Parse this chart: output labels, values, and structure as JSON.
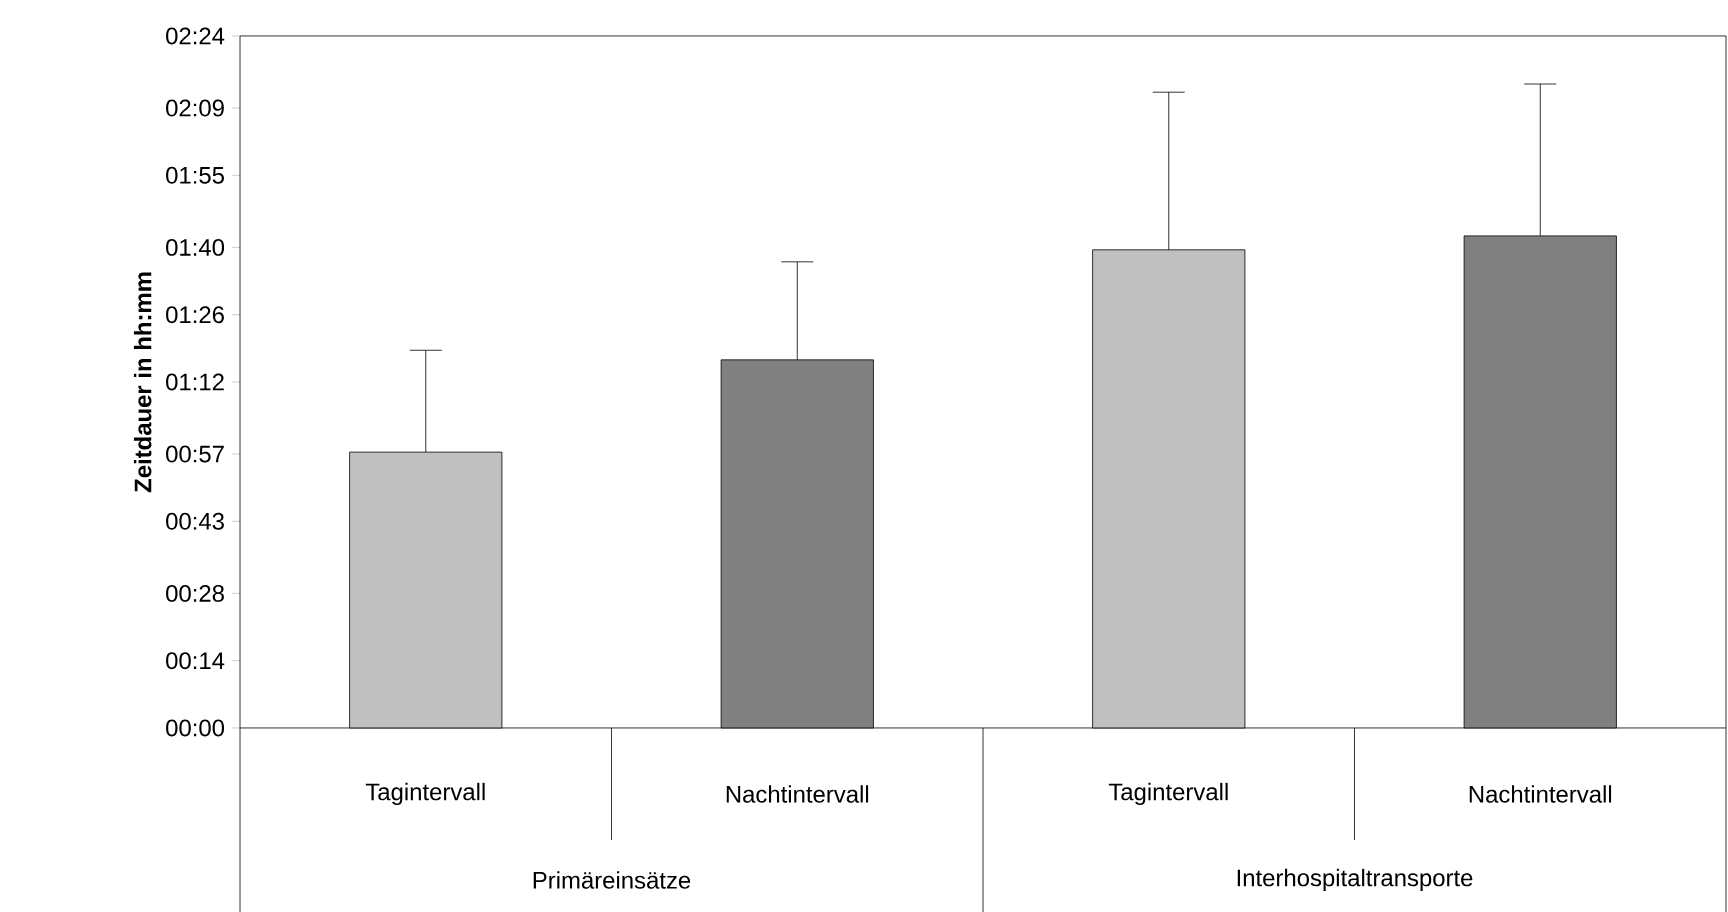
{
  "chart_data": {
    "type": "bar",
    "ylabel": "Zeitdauer in hh:mm",
    "categories": [
      "Tagintervall",
      "Nachtintervall",
      "Tagintervall",
      "Nachtintervall"
    ],
    "values": [
      57.4,
      76.6,
      99.5,
      102.4
    ],
    "colors": [
      "#c0c0c0",
      "#808080",
      "#c0c0c0",
      "#808080"
    ],
    "errors": [
      [
        57.4,
        78.6
      ],
      [
        76.6,
        97
      ],
      [
        99.5,
        132.3
      ],
      [
        102.4,
        134
      ]
    ],
    "ylim": [
      0,
      144
    ],
    "yticks": [
      {
        "value": 0,
        "label": "00:00"
      },
      {
        "value": 14,
        "label": "00:14"
      },
      {
        "value": 28,
        "label": "00:28"
      },
      {
        "value": 43,
        "label": "00:43"
      },
      {
        "value": 57,
        "label": "00:57"
      },
      {
        "value": 72,
        "label": "01:12"
      },
      {
        "value": 86,
        "label": "01:26"
      },
      {
        "value": 100,
        "label": "01:40"
      },
      {
        "value": 115,
        "label": "01:55"
      },
      {
        "value": 129,
        "label": "02:09"
      },
      {
        "value": 144,
        "label": "02:24"
      }
    ],
    "annotations": [
      "Primäreinsätze",
      "Interhospitaltransporte"
    ],
    "grid": false
  }
}
